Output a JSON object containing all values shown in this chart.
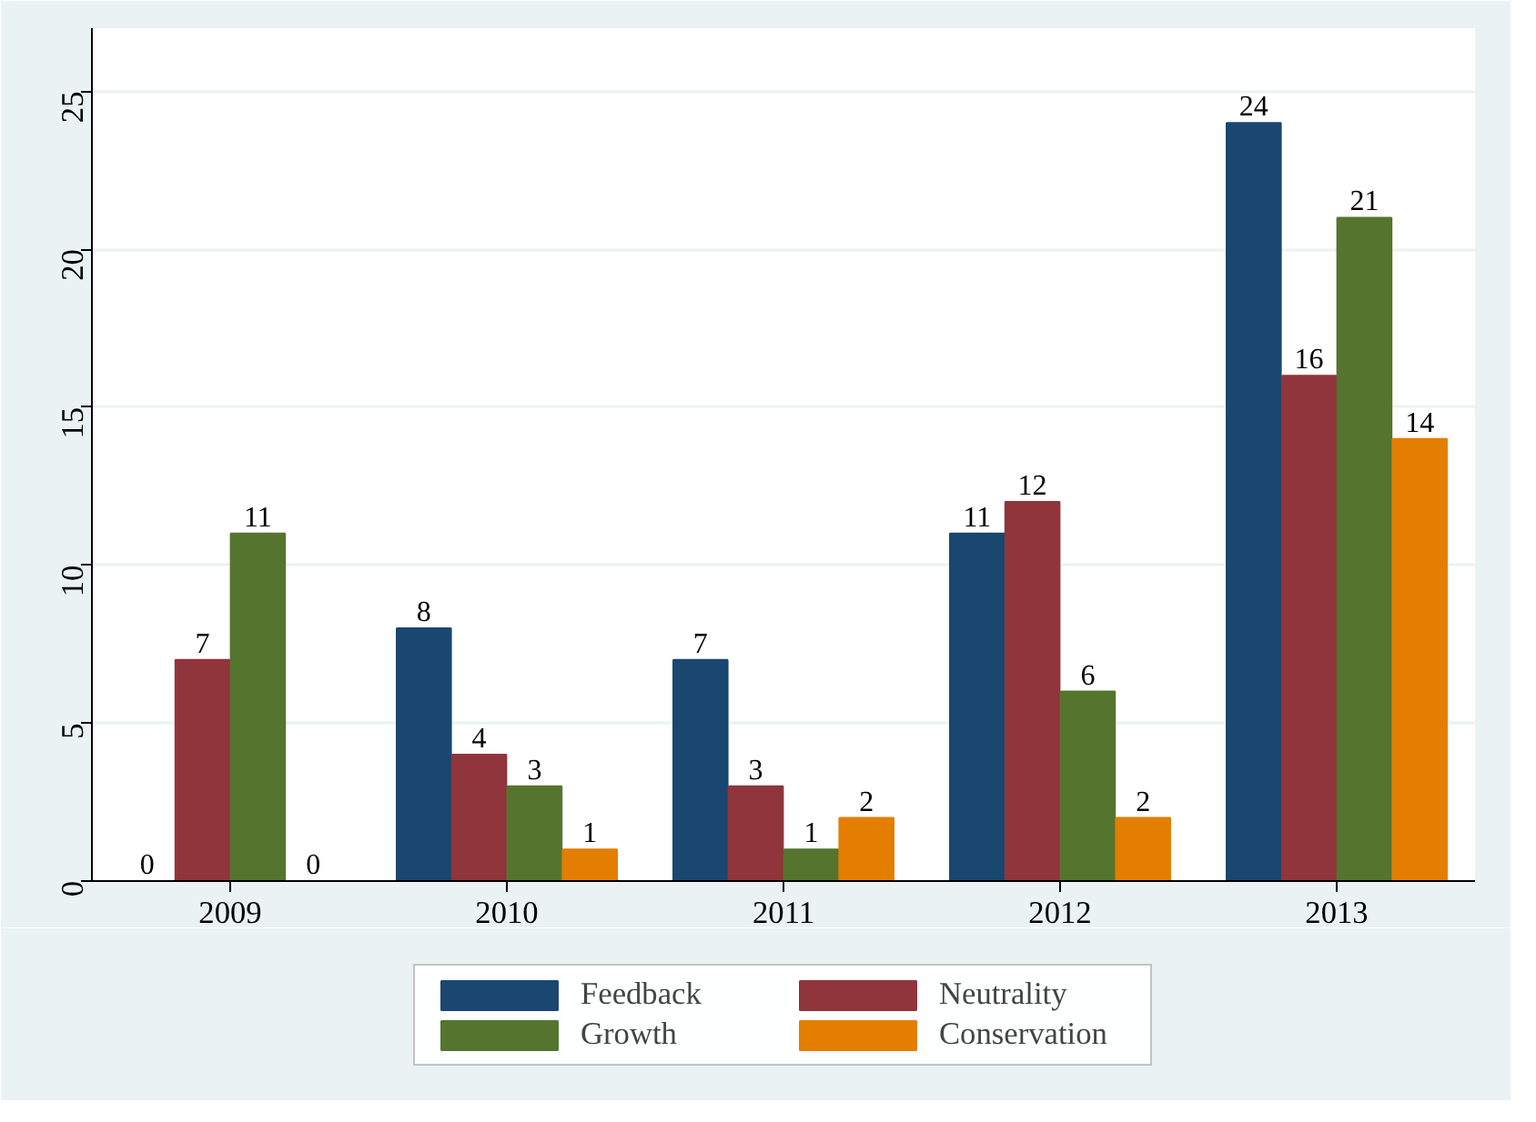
{
  "chart_data": {
    "type": "bar",
    "categories": [
      "2009",
      "2010",
      "2011",
      "2012",
      "2013"
    ],
    "series": [
      {
        "name": "Feedback",
        "color": "#1a476f",
        "values": [
          0,
          8,
          7,
          11,
          24
        ]
      },
      {
        "name": "Neutrality",
        "color": "#90353b",
        "values": [
          7,
          4,
          3,
          12,
          16
        ]
      },
      {
        "name": "Growth",
        "color": "#55752f",
        "values": [
          11,
          3,
          1,
          6,
          21
        ]
      },
      {
        "name": "Conservation",
        "color": "#e37e00",
        "values": [
          0,
          1,
          2,
          2,
          14
        ]
      }
    ],
    "ylim": [
      0,
      27
    ],
    "yticks": [
      0,
      5,
      10,
      15,
      20,
      25
    ],
    "grid": "y",
    "legend": "bottom",
    "data_labels": true
  }
}
